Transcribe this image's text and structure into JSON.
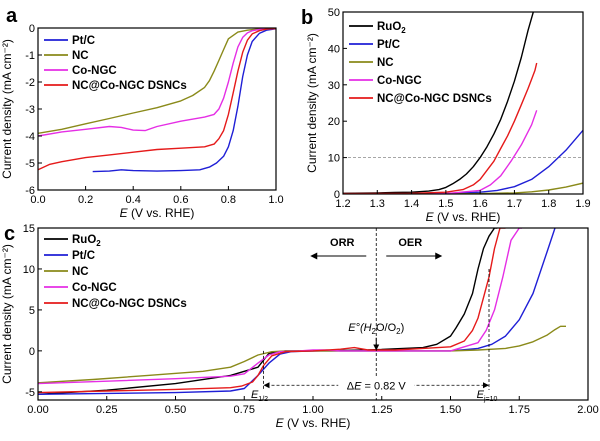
{
  "panels": [
    {
      "id": "a",
      "label": "a",
      "xlabel": "E (V vs. RHE)",
      "ylabel": "Current density (mA cm⁻²)",
      "xlim": [
        0.0,
        1.0
      ],
      "ylim": [
        -6,
        0
      ],
      "xticks": [
        "0.0",
        "0.2",
        "0.4",
        "0.6",
        "0.8",
        "1.0"
      ],
      "xtick_values": [
        0.0,
        0.2,
        0.4,
        0.6,
        0.8,
        1.0
      ],
      "yticks": [
        "0",
        "-1",
        "-2",
        "-3",
        "-4",
        "-5",
        "-6"
      ],
      "ytick_values": [
        0,
        -1,
        -2,
        -3,
        -4,
        -5,
        -6
      ],
      "legend_position": "top-left"
    },
    {
      "id": "b",
      "label": "b",
      "xlabel": "E (V vs. RHE)",
      "ylabel": "Current density (mA cm⁻²)",
      "xlim": [
        1.2,
        1.9
      ],
      "ylim": [
        0,
        50
      ],
      "xticks": [
        "1.2",
        "1.3",
        "1.4",
        "1.5",
        "1.6",
        "1.7",
        "1.8",
        "1.9"
      ],
      "xtick_values": [
        1.2,
        1.3,
        1.4,
        1.5,
        1.6,
        1.7,
        1.8,
        1.9
      ],
      "yticks": [
        "0",
        "10",
        "20",
        "30",
        "40",
        "50"
      ],
      "ytick_values": [
        0,
        10,
        20,
        30,
        40,
        50
      ],
      "ref_line_y": 10,
      "legend_position": "top-left"
    },
    {
      "id": "c",
      "label": "c",
      "xlabel": "E (V vs. RHE)",
      "ylabel": "Current density (mA cm⁻²)",
      "xlim": [
        0.0,
        2.0
      ],
      "ylim": [
        -6,
        15
      ],
      "xticks": [
        "0.00",
        "0.25",
        "0.50",
        "0.75",
        "1.00",
        "1.25",
        "1.50",
        "1.75",
        "2.00"
      ],
      "xtick_values": [
        0.0,
        0.25,
        0.5,
        0.75,
        1.0,
        1.25,
        1.5,
        1.75,
        2.0
      ],
      "yticks": [
        "15",
        "10",
        "5",
        "0",
        "-5"
      ],
      "ytick_values": [
        15,
        10,
        5,
        0,
        -5
      ],
      "legend_position": "top-left",
      "annotations": {
        "orr": "ORR",
        "oer": "OER",
        "e0_main": "E°(H",
        "e0_sub1": "2",
        "e0_mid": "O/O",
        "e0_sub2": "2",
        "e0_end": ")",
        "delta_e": "ΔE = 0.82 V",
        "e_half_main": "E",
        "e_half_sub": "1/2",
        "e_j10_main": "E",
        "e_j10_sub": "j=10",
        "e_half_x": 0.82,
        "e_j10_x": 1.64,
        "e0_x": 1.23
      }
    }
  ],
  "colors": {
    "RuO2": "#000000",
    "Pt/C": "#1f1fd6",
    "NC": "#8a8a1a",
    "Co-NGC": "#e52ee5",
    "NC@Co-NGC DSNCs": "#e51a1a",
    "ref_line": "#888888"
  },
  "chart_data": [
    {
      "type": "line",
      "panel": "a",
      "xlabel": "E (V vs. RHE)",
      "ylabel": "Current density (mA cm-2)",
      "xlim": [
        0.0,
        1.0
      ],
      "ylim": [
        -6,
        0
      ],
      "series": [
        {
          "name": "Pt/C",
          "legend": "Pt/C",
          "x": [
            0.23,
            0.3,
            0.35,
            0.4,
            0.5,
            0.6,
            0.68,
            0.72,
            0.75,
            0.78,
            0.8,
            0.82,
            0.84,
            0.86,
            0.88,
            0.9,
            0.93,
            0.96,
            1.0
          ],
          "y": [
            -5.32,
            -5.3,
            -5.25,
            -5.28,
            -5.3,
            -5.28,
            -5.25,
            -5.15,
            -5.0,
            -4.75,
            -4.4,
            -3.8,
            -2.9,
            -1.8,
            -1.0,
            -0.5,
            -0.2,
            -0.08,
            -0.03
          ]
        },
        {
          "name": "NC",
          "legend": "NC",
          "x": [
            0.0,
            0.1,
            0.2,
            0.3,
            0.4,
            0.5,
            0.6,
            0.65,
            0.7,
            0.72,
            0.74,
            0.76,
            0.78,
            0.8,
            0.84,
            0.88,
            0.92,
            1.0
          ],
          "y": [
            -3.9,
            -3.75,
            -3.55,
            -3.35,
            -3.15,
            -2.95,
            -2.7,
            -2.5,
            -2.2,
            -1.95,
            -1.6,
            -1.2,
            -0.8,
            -0.4,
            -0.15,
            -0.08,
            -0.04,
            -0.02
          ]
        },
        {
          "name": "Co-NGC",
          "legend": "Co-NGC",
          "x": [
            0.0,
            0.1,
            0.2,
            0.3,
            0.35,
            0.4,
            0.45,
            0.5,
            0.6,
            0.7,
            0.74,
            0.76,
            0.78,
            0.8,
            0.82,
            0.84,
            0.86,
            0.88,
            0.9,
            0.94,
            1.0
          ],
          "y": [
            -4.0,
            -3.85,
            -3.75,
            -3.65,
            -3.68,
            -3.78,
            -3.8,
            -3.65,
            -3.45,
            -3.3,
            -3.2,
            -3.0,
            -2.6,
            -2.0,
            -1.3,
            -0.7,
            -0.35,
            -0.18,
            -0.1,
            -0.04,
            -0.02
          ]
        },
        {
          "name": "NC@Co-NGC DSNCs",
          "legend": "NC@Co-NGC DSNCs",
          "x": [
            0.0,
            0.05,
            0.1,
            0.2,
            0.3,
            0.4,
            0.5,
            0.6,
            0.7,
            0.74,
            0.76,
            0.78,
            0.8,
            0.82,
            0.84,
            0.86,
            0.88,
            0.9,
            0.93,
            0.96,
            1.0
          ],
          "y": [
            -5.25,
            -5.05,
            -4.95,
            -4.8,
            -4.7,
            -4.6,
            -4.5,
            -4.45,
            -4.4,
            -4.3,
            -4.1,
            -3.8,
            -3.2,
            -2.4,
            -1.6,
            -0.9,
            -0.45,
            -0.22,
            -0.1,
            -0.04,
            -0.02
          ]
        }
      ]
    },
    {
      "type": "line",
      "panel": "b",
      "xlabel": "E (V vs. RHE)",
      "ylabel": "Current density (mA cm-2)",
      "xlim": [
        1.2,
        1.9
      ],
      "ylim": [
        0,
        50
      ],
      "series": [
        {
          "name": "RuO2",
          "legend": "RuO2",
          "x": [
            1.2,
            1.3,
            1.35,
            1.4,
            1.45,
            1.48,
            1.5,
            1.52,
            1.54,
            1.56,
            1.58,
            1.6,
            1.62,
            1.64,
            1.66,
            1.68,
            1.7,
            1.72,
            1.74,
            1.755
          ],
          "y": [
            0.2,
            0.3,
            0.4,
            0.5,
            0.8,
            1.2,
            1.8,
            2.8,
            4.0,
            5.5,
            7.5,
            10.0,
            13.0,
            16.5,
            20.5,
            25.5,
            31.0,
            37.5,
            45.0,
            50.0
          ]
        },
        {
          "name": "Pt/C",
          "legend": "Pt/C",
          "x": [
            1.2,
            1.4,
            1.5,
            1.6,
            1.65,
            1.7,
            1.75,
            1.8,
            1.85,
            1.9
          ],
          "y": [
            0.0,
            0.0,
            0.1,
            0.5,
            1.0,
            2.0,
            4.0,
            7.5,
            12.0,
            17.5
          ]
        },
        {
          "name": "NC",
          "legend": "NC",
          "x": [
            1.2,
            1.5,
            1.6,
            1.7,
            1.75,
            1.8,
            1.85,
            1.9
          ],
          "y": [
            0.0,
            0.0,
            0.1,
            0.3,
            0.6,
            1.1,
            1.9,
            3.0
          ]
        },
        {
          "name": "Co-NGC",
          "legend": "Co-NGC",
          "x": [
            1.2,
            1.5,
            1.6,
            1.63,
            1.66,
            1.69,
            1.72,
            1.75,
            1.765
          ],
          "y": [
            0.0,
            0.1,
            1.0,
            2.5,
            5.0,
            9.0,
            13.5,
            19.0,
            23.0
          ]
        },
        {
          "name": "NC@Co-NGC DSNCs",
          "legend": "NC@Co-NGC DSNCs",
          "x": [
            1.2,
            1.4,
            1.5,
            1.55,
            1.58,
            1.6,
            1.62,
            1.64,
            1.66,
            1.68,
            1.7,
            1.72,
            1.74,
            1.75,
            1.76,
            1.765
          ],
          "y": [
            0.1,
            0.2,
            0.5,
            1.2,
            2.5,
            4.0,
            6.5,
            9.0,
            12.5,
            16.0,
            20.0,
            24.5,
            29.0,
            31.5,
            34.0,
            36.0
          ]
        }
      ]
    },
    {
      "type": "line",
      "panel": "c",
      "xlabel": "E (V vs. RHE)",
      "ylabel": "Current density (mA cm-2)",
      "xlim": [
        0.0,
        2.0
      ],
      "ylim": [
        -6,
        15
      ],
      "series": [
        {
          "name": "RuO2",
          "legend": "RuO2",
          "x": [
            0.0,
            0.25,
            0.5,
            0.7,
            0.8,
            0.84,
            0.9,
            1.0,
            1.2,
            1.4,
            1.45,
            1.5,
            1.52,
            1.55,
            1.58,
            1.6,
            1.62,
            1.64,
            1.66,
            1.67
          ],
          "y": [
            -5.3,
            -4.8,
            -4.0,
            -3.0,
            -2.0,
            -0.3,
            0.0,
            0.0,
            0.1,
            0.4,
            0.8,
            1.8,
            2.8,
            4.5,
            7.0,
            10.0,
            12.5,
            14.0,
            15.0,
            15.0
          ]
        },
        {
          "name": "Pt/C",
          "legend": "Pt/C",
          "x": [
            0.0,
            0.25,
            0.5,
            0.7,
            0.75,
            0.8,
            0.84,
            0.88,
            0.92,
            1.0,
            1.5,
            1.6,
            1.65,
            1.7,
            1.75,
            1.8,
            1.85,
            1.88
          ],
          "y": [
            -5.3,
            -5.2,
            -5.1,
            -4.9,
            -4.6,
            -3.0,
            -1.5,
            -0.4,
            -0.1,
            0.0,
            0.0,
            0.3,
            0.8,
            1.8,
            3.8,
            7.0,
            12.0,
            15.0
          ]
        },
        {
          "name": "NC",
          "legend": "NC",
          "x": [
            0.0,
            0.2,
            0.4,
            0.6,
            0.7,
            0.75,
            0.8,
            0.85,
            0.9,
            1.0,
            1.5,
            1.6,
            1.7,
            1.75,
            1.8,
            1.85,
            1.88,
            1.9,
            1.92
          ],
          "y": [
            -3.9,
            -3.5,
            -3.0,
            -2.5,
            -2.0,
            -1.3,
            -0.5,
            -0.1,
            0.0,
            0.0,
            0.0,
            0.1,
            0.3,
            0.6,
            1.1,
            1.9,
            2.6,
            3.0,
            3.0
          ]
        },
        {
          "name": "Co-NGC",
          "legend": "Co-NGC",
          "x": [
            0.0,
            0.25,
            0.5,
            0.7,
            0.75,
            0.8,
            0.84,
            0.88,
            0.95,
            1.0,
            1.05,
            1.1,
            1.5,
            1.6,
            1.63,
            1.66,
            1.69,
            1.72,
            1.75,
            1.76
          ],
          "y": [
            -4.0,
            -3.7,
            -3.4,
            -3.1,
            -2.8,
            -1.5,
            -0.5,
            -0.1,
            0.0,
            0.1,
            0.1,
            0.0,
            0.0,
            1.0,
            2.5,
            5.0,
            9.0,
            13.5,
            15.0,
            15.0
          ]
        },
        {
          "name": "NC@Co-NGC DSNCs",
          "legend": "NC@Co-NGC DSNCs",
          "x": [
            0.0,
            0.25,
            0.5,
            0.7,
            0.74,
            0.78,
            0.8,
            0.82,
            0.85,
            0.9,
            1.0,
            1.1,
            1.15,
            1.2,
            1.3,
            1.4,
            1.5,
            1.55,
            1.58,
            1.6,
            1.62,
            1.64,
            1.66,
            1.68,
            1.7
          ],
          "y": [
            -5.1,
            -4.9,
            -4.7,
            -4.5,
            -4.3,
            -3.8,
            -3.0,
            -1.8,
            -0.6,
            -0.1,
            0.0,
            0.2,
            0.4,
            0.1,
            0.1,
            0.3,
            0.5,
            1.2,
            2.5,
            4.0,
            6.5,
            9.0,
            12.5,
            15.0,
            15.0
          ]
        }
      ]
    }
  ]
}
